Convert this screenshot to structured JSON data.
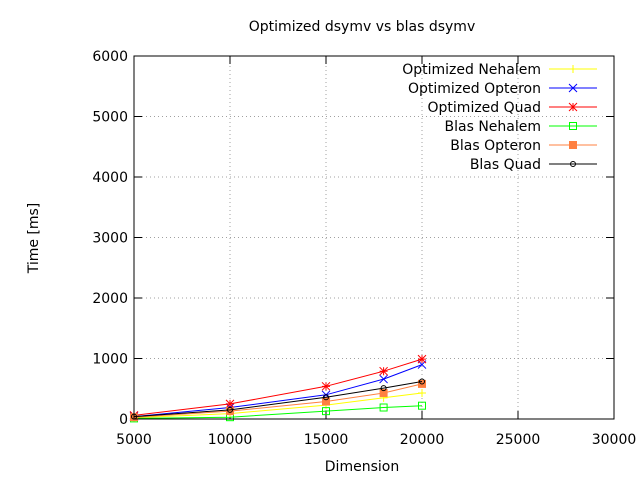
{
  "chart_data": {
    "type": "line",
    "title": "Optimized dsymv vs blas dsymv",
    "xlabel": "Dimension",
    "ylabel": "Time [ms]",
    "xlim": [
      5000,
      30000
    ],
    "ylim": [
      0,
      6000
    ],
    "x_ticks": [
      5000,
      10000,
      15000,
      20000,
      25000,
      30000
    ],
    "y_ticks": [
      0,
      1000,
      2000,
      3000,
      4000,
      5000,
      6000
    ],
    "grid": true,
    "legend_position": "top-right",
    "x": [
      5000,
      10000,
      15000,
      18000,
      20000
    ],
    "series": [
      {
        "name": "Optimized Nehalem",
        "color": "#ffff00",
        "marker": "plus",
        "values": [
          20,
          90,
          230,
          350,
          430
        ]
      },
      {
        "name": "Optimized Opteron",
        "color": "#0000ff",
        "marker": "x",
        "values": [
          40,
          190,
          400,
          660,
          900
        ]
      },
      {
        "name": "Optimized Quad",
        "color": "#ff0000",
        "marker": "star",
        "values": [
          60,
          250,
          540,
          790,
          990
        ]
      },
      {
        "name": "Blas Nehalem",
        "color": "#00ff00",
        "marker": "open-square",
        "values": [
          10,
          30,
          130,
          190,
          220
        ]
      },
      {
        "name": "Blas Opteron",
        "color": "#ff8040",
        "marker": "filled-square",
        "values": [
          30,
          130,
          290,
          430,
          580
        ]
      },
      {
        "name": "Blas Quad",
        "color": "#000000",
        "marker": "open-circle",
        "values": [
          40,
          150,
          360,
          510,
          620
        ]
      }
    ]
  }
}
